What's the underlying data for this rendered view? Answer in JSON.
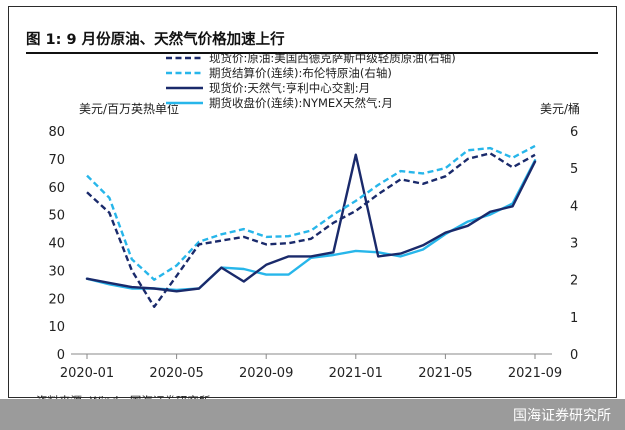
{
  "figure": {
    "title": "图 1:  9 月份原油、天然气价格加速上行",
    "source": "资料来源: Wind、国海证券研究所",
    "brand": "国海证券研究所"
  },
  "colors": {
    "dark_navy": "#1a2a6b",
    "light_blue": "#27b6ea",
    "axis": "#888888"
  },
  "chart_data": {
    "type": "line",
    "x": [
      "2020-01",
      "2020-02",
      "2020-03",
      "2020-04",
      "2020-05",
      "2020-06",
      "2020-07",
      "2020-08",
      "2020-09",
      "2020-10",
      "2020-11",
      "2020-12",
      "2021-01",
      "2021-02",
      "2021-03",
      "2021-04",
      "2021-05",
      "2021-06",
      "2021-07",
      "2021-08",
      "2021-09"
    ],
    "xticks": [
      "2020-01",
      "2020-05",
      "2020-09",
      "2021-01",
      "2021-05",
      "2021-09"
    ],
    "left_axis": {
      "label": "美元/百万英热单位",
      "range": [
        0,
        80
      ],
      "ticks": [
        "0",
        "10",
        "20",
        "30",
        "40",
        "50",
        "60",
        "70",
        "80"
      ]
    },
    "right_axis": {
      "label": "美元/桶",
      "range": [
        0,
        6
      ],
      "ticks": [
        "0",
        "1",
        "2",
        "3",
        "4",
        "5",
        "6"
      ]
    },
    "legend_position": "top",
    "series": [
      {
        "name": "现货价:原油:美国西德克萨斯中级轻质原油(右轴)",
        "axis": "right",
        "style": "dashed",
        "color": "dark_navy",
        "values": [
          4.35,
          3.8,
          2.25,
          1.27,
          2.1,
          2.95,
          3.05,
          3.15,
          2.95,
          2.98,
          3.1,
          3.53,
          3.85,
          4.3,
          4.7,
          4.58,
          4.78,
          5.25,
          5.4,
          5.02,
          5.36
        ]
      },
      {
        "name": "期货结算价(连续):布伦特原油(右轴)",
        "axis": "right",
        "style": "dashed",
        "color": "light_blue",
        "values": [
          4.8,
          4.2,
          2.55,
          2.0,
          2.38,
          3.02,
          3.22,
          3.36,
          3.15,
          3.17,
          3.32,
          3.75,
          4.12,
          4.55,
          4.92,
          4.86,
          5.0,
          5.48,
          5.54,
          5.28,
          5.6
        ]
      },
      {
        "name": "现货价:天然气:亨利中心交割:月",
        "axis": "left",
        "style": "solid",
        "color": "dark_navy",
        "values": [
          27,
          25.5,
          24,
          23.5,
          22.5,
          23.5,
          31,
          26,
          32,
          35,
          35,
          36.5,
          71.5,
          35,
          36,
          39,
          43.5,
          46,
          51,
          53,
          69
        ]
      },
      {
        "name": "期货收盘价(连续):NYMEX天然气:月",
        "axis": "left",
        "style": "solid",
        "color": "light_blue",
        "values": [
          27,
          25,
          23.5,
          23.5,
          23,
          23.5,
          31,
          30.5,
          28.5,
          28.5,
          34.5,
          35.5,
          37,
          36.5,
          35,
          37.5,
          43,
          47.5,
          50,
          54,
          69.5
        ]
      }
    ]
  }
}
